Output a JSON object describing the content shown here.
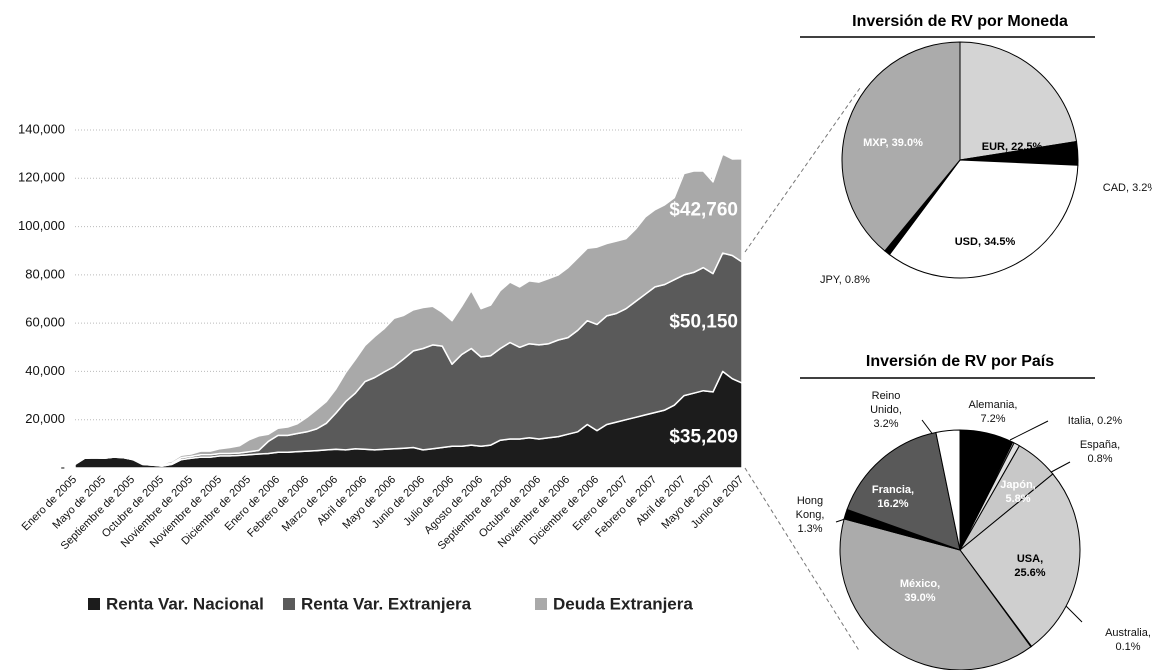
{
  "chart_data": [
    {
      "type": "area",
      "stacked": true,
      "grid": true,
      "legend": "bottom",
      "categories": [
        "Enero de 2005",
        null,
        null,
        "Mayo de 2005",
        null,
        null,
        "Septiembre de 2005",
        null,
        null,
        "Octubre de 2005",
        null,
        null,
        "Noviembre de 2005",
        null,
        null,
        "Noviembre de 2005",
        null,
        null,
        "Diciembre de 2005",
        null,
        null,
        "Enero de 2006",
        null,
        null,
        "Febrero de 2006",
        null,
        null,
        "Marzo de 2006",
        null,
        null,
        "Abril de 2006",
        null,
        null,
        "Mayo de 2006",
        null,
        null,
        "Junio de 2006",
        null,
        null,
        "Julio de 2006",
        null,
        null,
        "Agosto de 2006",
        null,
        null,
        "Septiembre de 2006",
        null,
        null,
        "Octubre de 2006",
        null,
        null,
        "Noviembre de 2006",
        null,
        null,
        "Diciembre de 2006",
        null,
        null,
        "Enero de 2007",
        null,
        null,
        "Febrero de 2007",
        null,
        null,
        "Abril de 2007",
        null,
        null,
        "Mayo de 2007",
        null,
        null,
        "Junio de 2007"
      ],
      "series": [
        {
          "name": "Renta Var. Nacional",
          "color": "#1c1c1c",
          "values": [
            1500,
            4000,
            4200,
            4000,
            4500,
            4300,
            3500,
            1500,
            1200,
            800,
            1500,
            3500,
            4000,
            4500,
            4500,
            5000,
            5000,
            5200,
            5500,
            5800,
            6000,
            6500,
            6500,
            6800,
            7000,
            7200,
            7500,
            7800,
            7500,
            8000,
            7800,
            7500,
            7800,
            8000,
            8200,
            8500,
            7500,
            8000,
            8500,
            9000,
            9000,
            9500,
            9000,
            9500,
            11500,
            12000,
            12000,
            12500,
            12000,
            12500,
            13000,
            14000,
            15000,
            18000,
            15500,
            18000,
            19000,
            20000,
            21000,
            22000,
            23000,
            24000,
            26000,
            30000,
            31000,
            32000,
            31500,
            40000,
            37000,
            35209
          ],
          "value_labels": [
            null,
            null,
            null,
            null,
            null,
            null,
            null,
            null,
            null,
            null,
            null,
            null,
            null,
            null,
            null,
            null,
            null,
            null,
            null,
            null,
            null,
            null,
            null,
            null,
            null,
            null,
            null,
            null,
            null,
            null,
            null,
            null,
            null,
            null,
            null,
            null,
            null,
            null,
            null,
            null,
            null,
            null,
            null,
            null,
            null,
            null,
            null,
            null,
            null,
            null,
            null,
            null,
            null,
            null,
            null,
            null,
            null,
            null,
            null,
            null,
            null,
            null,
            null,
            null,
            null,
            null,
            null,
            null,
            null,
            "$35,209"
          ]
        },
        {
          "name": "Renta Var. Extranjera",
          "color": "#5a5a5a",
          "values": [
            0,
            0,
            0,
            0,
            0,
            0,
            0,
            0,
            0,
            500,
            500,
            800,
            800,
            1000,
            1000,
            1000,
            1000,
            1000,
            1200,
            1500,
            5000,
            7000,
            7000,
            7500,
            8000,
            9000,
            11000,
            15000,
            20000,
            23000,
            28000,
            30000,
            32000,
            34000,
            37000,
            40000,
            42000,
            43000,
            42000,
            34000,
            38000,
            40000,
            37000,
            37000,
            38000,
            40000,
            38000,
            39000,
            39000,
            39000,
            40000,
            40000,
            42000,
            43000,
            44000,
            45000,
            45000,
            46000,
            48000,
            50000,
            52000,
            52000,
            52000,
            50000,
            50000,
            51000,
            49000,
            49000,
            51000,
            50150
          ],
          "value_labels": [
            null,
            null,
            null,
            null,
            null,
            null,
            null,
            null,
            null,
            null,
            null,
            null,
            null,
            null,
            null,
            null,
            null,
            null,
            null,
            null,
            null,
            null,
            null,
            null,
            null,
            null,
            null,
            null,
            null,
            null,
            null,
            null,
            null,
            null,
            null,
            null,
            null,
            null,
            null,
            null,
            null,
            null,
            null,
            null,
            null,
            null,
            null,
            null,
            null,
            null,
            null,
            null,
            null,
            null,
            null,
            null,
            null,
            null,
            null,
            null,
            null,
            null,
            null,
            null,
            null,
            null,
            null,
            null,
            null,
            "$50,150"
          ]
        },
        {
          "name": "Deuda Extranjera",
          "color": "#a9a9a9",
          "values": [
            0,
            0,
            0,
            0,
            0,
            0,
            0,
            0,
            0,
            500,
            800,
            1000,
            1000,
            1500,
            1500,
            2000,
            2500,
            3000,
            5000,
            6000,
            3000,
            3000,
            3500,
            4000,
            6000,
            8000,
            9000,
            10000,
            12000,
            14000,
            15000,
            17000,
            18000,
            20000,
            18000,
            17000,
            17000,
            16000,
            14000,
            18000,
            20000,
            24000,
            20000,
            21000,
            24000,
            25000,
            25000,
            26000,
            26000,
            27000,
            27000,
            29000,
            30000,
            30000,
            32000,
            30000,
            30000,
            29000,
            30000,
            32000,
            32000,
            33000,
            34000,
            42000,
            42000,
            40000,
            38000,
            41000,
            40000,
            42760
          ],
          "value_labels": [
            null,
            null,
            null,
            null,
            null,
            null,
            null,
            null,
            null,
            null,
            null,
            null,
            null,
            null,
            null,
            null,
            null,
            null,
            null,
            null,
            null,
            null,
            null,
            null,
            null,
            null,
            null,
            null,
            null,
            null,
            null,
            null,
            null,
            null,
            null,
            null,
            null,
            null,
            null,
            null,
            null,
            null,
            null,
            null,
            null,
            null,
            null,
            null,
            null,
            null,
            null,
            null,
            null,
            null,
            null,
            null,
            null,
            null,
            null,
            null,
            null,
            null,
            null,
            null,
            null,
            null,
            null,
            null,
            null,
            "$42,760"
          ]
        }
      ],
      "ylim": [
        0,
        140000
      ],
      "yticks": [
        {
          "value": 0,
          "label": "-"
        },
        {
          "value": 20000,
          "label": "20,000"
        },
        {
          "value": 40000,
          "label": "40,000"
        },
        {
          "value": 60000,
          "label": "60,000"
        },
        {
          "value": 80000,
          "label": "80,000"
        },
        {
          "value": 100000,
          "label": "100,000"
        },
        {
          "value": 120000,
          "label": "120,000"
        },
        {
          "value": 140000,
          "label": "140,000"
        }
      ]
    },
    {
      "type": "pie",
      "title": "Inversión de RV por Moneda",
      "values": [
        22.5,
        3.2,
        34.5,
        0.8,
        39.0
      ],
      "value_labels": [
        "EUR, 22.5%",
        "CAD, 3.2%",
        "USD, 34.5%",
        "JPY, 0.8%",
        "MXP, 39.0%"
      ],
      "colors": [
        "#d4d4d4",
        "#000000",
        "#ffffff",
        "#000000",
        "#ababab"
      ]
    },
    {
      "type": "pie",
      "title": "Inversión de RV por País",
      "values": [
        7.2,
        0.2,
        0.8,
        5.8,
        25.6,
        0.1,
        39.0,
        1.3,
        16.2,
        3.2
      ],
      "value_labels": [
        "Alemania, 7.2%",
        "Italia, 0.2%",
        "España, 0.8%",
        "Japón, 5.8%",
        "USA, 25.6%",
        "Australia, 0.1%",
        "México, 39.0%",
        "Hong Kong, 1.3%",
        "Francia, 16.2%",
        "Reino Unido, 3.2%"
      ],
      "colors": [
        "#000000",
        "#ffffff",
        "#e0e0e0",
        "#c8c8c8",
        "#cfcfcf",
        "#ffffff",
        "#ababab",
        "#000000",
        "#595959",
        "#ffffff"
      ]
    }
  ]
}
